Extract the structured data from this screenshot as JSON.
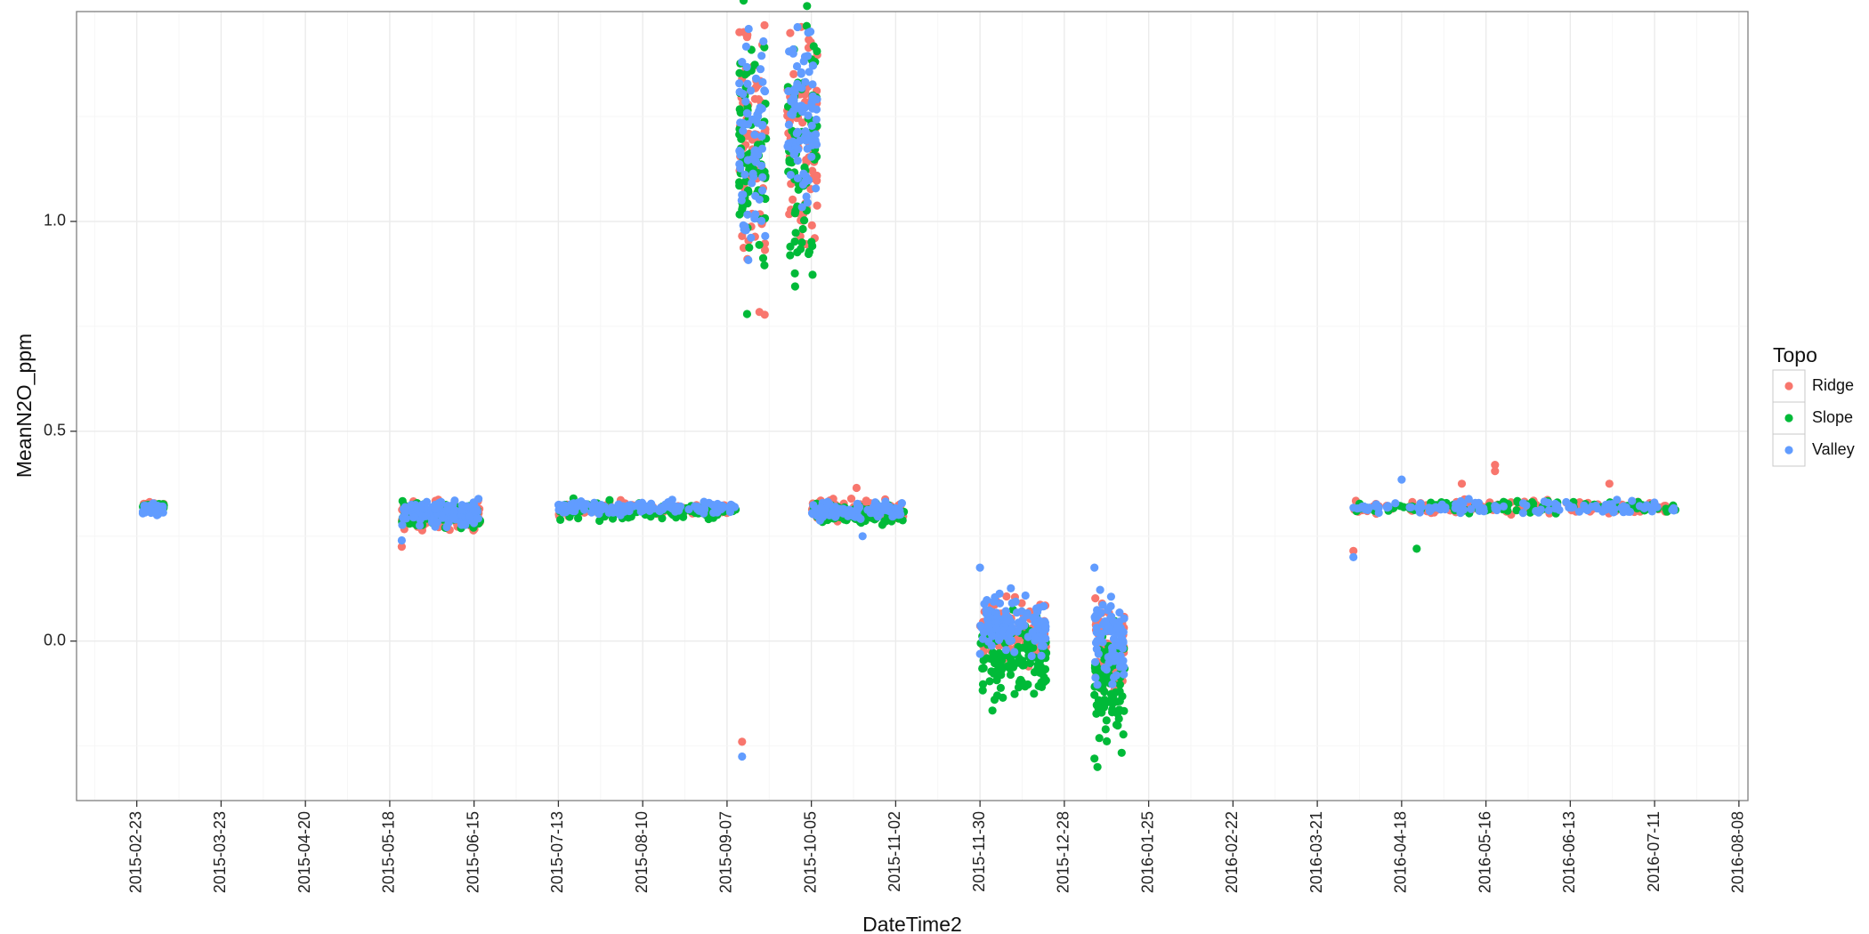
{
  "chart_data": {
    "type": "scatter",
    "title": "",
    "xlabel": "DateTime2",
    "ylabel": "MeanN2O_ppm",
    "x_type": "date",
    "xlim": [
      "2015-02-03",
      "2016-08-11"
    ],
    "ylim": [
      -0.38,
      1.5
    ],
    "grid": true,
    "legend": {
      "title": "Topo",
      "position": "right"
    },
    "x_ticks": [
      "2015-02-23",
      "2015-03-23",
      "2015-04-20",
      "2015-05-18",
      "2015-06-15",
      "2015-07-13",
      "2015-08-10",
      "2015-09-07",
      "2015-10-05",
      "2015-11-02",
      "2015-11-30",
      "2015-12-28",
      "2016-01-25",
      "2016-02-22",
      "2016-03-21",
      "2016-04-18",
      "2016-05-16",
      "2016-06-13",
      "2016-07-11",
      "2016-08-08"
    ],
    "y_ticks": [
      0.0,
      0.5,
      1.0
    ],
    "y_tick_labels": [
      "0.0",
      "0.5",
      "1.0"
    ],
    "series": [
      {
        "name": "Ridge",
        "color": "#F8766D",
        "clusters": [
          {
            "start": "2015-02-25",
            "end": "2015-03-04",
            "center": 0.32,
            "spread": 0.005
          },
          {
            "start": "2015-05-22",
            "end": "2015-06-17",
            "center": 0.3,
            "spread": 0.016
          },
          {
            "start": "2015-07-13",
            "end": "2015-09-10",
            "center": 0.315,
            "spread": 0.008
          },
          {
            "start": "2015-09-11",
            "end": "2015-09-20",
            "center": 1.18,
            "spread": 0.16
          },
          {
            "start": "2015-09-27",
            "end": "2015-10-07",
            "center": 1.2,
            "spread": 0.12
          },
          {
            "start": "2015-10-05",
            "end": "2015-11-05",
            "center": 0.31,
            "spread": 0.012
          },
          {
            "start": "2015-11-30",
            "end": "2015-12-22",
            "center": 0.02,
            "spread": 0.035
          },
          {
            "start": "2016-01-07",
            "end": "2016-01-17",
            "center": -0.02,
            "spread": 0.05
          },
          {
            "start": "2016-04-02",
            "end": "2016-07-18",
            "center": 0.32,
            "spread": 0.008
          }
        ],
        "points": [
          {
            "x": "2015-09-12",
            "y": -0.24
          },
          {
            "x": "2015-05-22",
            "y": 0.225
          },
          {
            "x": "2016-04-02",
            "y": 0.215
          },
          {
            "x": "2016-05-19",
            "y": 0.42
          },
          {
            "x": "2016-05-19",
            "y": 0.405
          },
          {
            "x": "2016-05-08",
            "y": 0.375
          },
          {
            "x": "2016-06-26",
            "y": 0.375
          },
          {
            "x": "2015-10-20",
            "y": 0.365
          },
          {
            "x": "2015-09-12",
            "y": 0.965
          },
          {
            "x": "2015-09-12",
            "y": 1.34
          }
        ]
      },
      {
        "name": "Slope",
        "color": "#00BA38",
        "clusters": [
          {
            "start": "2015-02-25",
            "end": "2015-03-04",
            "center": 0.32,
            "spread": 0.004
          },
          {
            "start": "2015-05-22",
            "end": "2015-06-17",
            "center": 0.3,
            "spread": 0.015
          },
          {
            "start": "2015-07-13",
            "end": "2015-09-10",
            "center": 0.31,
            "spread": 0.009
          },
          {
            "start": "2015-09-11",
            "end": "2015-09-20",
            "center": 1.15,
            "spread": 0.15
          },
          {
            "start": "2015-09-27",
            "end": "2015-10-07",
            "center": 1.18,
            "spread": 0.14
          },
          {
            "start": "2015-10-05",
            "end": "2015-11-05",
            "center": 0.305,
            "spread": 0.012
          },
          {
            "start": "2015-11-30",
            "end": "2015-12-22",
            "center": -0.05,
            "spread": 0.045
          },
          {
            "start": "2016-01-07",
            "end": "2016-01-17",
            "center": -0.12,
            "spread": 0.06
          },
          {
            "start": "2016-04-02",
            "end": "2016-07-18",
            "center": 0.32,
            "spread": 0.007
          }
        ],
        "points": [
          {
            "x": "2016-01-07",
            "y": -0.28
          },
          {
            "x": "2016-01-08",
            "y": -0.3
          },
          {
            "x": "2015-09-28",
            "y": 0.94
          },
          {
            "x": "2016-04-23",
            "y": 0.22
          },
          {
            "x": "2015-07-18",
            "y": 0.34
          },
          {
            "x": "2015-09-13",
            "y": 1.35
          }
        ]
      },
      {
        "name": "Valley",
        "color": "#619CFF",
        "clusters": [
          {
            "start": "2015-02-25",
            "end": "2015-03-04",
            "center": 0.315,
            "spread": 0.006
          },
          {
            "start": "2015-05-22",
            "end": "2015-06-17",
            "center": 0.305,
            "spread": 0.015
          },
          {
            "start": "2015-07-13",
            "end": "2015-09-10",
            "center": 0.318,
            "spread": 0.007
          },
          {
            "start": "2015-09-11",
            "end": "2015-09-20",
            "center": 1.2,
            "spread": 0.14
          },
          {
            "start": "2015-09-27",
            "end": "2015-10-07",
            "center": 1.25,
            "spread": 0.1
          },
          {
            "start": "2015-10-05",
            "end": "2015-11-05",
            "center": 0.31,
            "spread": 0.01
          },
          {
            "start": "2015-11-30",
            "end": "2015-12-22",
            "center": 0.04,
            "spread": 0.035
          },
          {
            "start": "2016-01-07",
            "end": "2016-01-17",
            "center": 0.0,
            "spread": 0.05
          },
          {
            "start": "2016-04-02",
            "end": "2016-07-18",
            "center": 0.318,
            "spread": 0.007
          }
        ],
        "points": [
          {
            "x": "2015-09-12",
            "y": -0.275
          },
          {
            "x": "2015-09-12",
            "y": 1.38
          },
          {
            "x": "2015-09-29",
            "y": 1.41
          },
          {
            "x": "2015-09-29",
            "y": 1.4
          },
          {
            "x": "2015-11-30",
            "y": 0.175
          },
          {
            "x": "2016-01-07",
            "y": 0.175
          },
          {
            "x": "2016-04-18",
            "y": 0.385
          },
          {
            "x": "2016-04-02",
            "y": 0.2
          },
          {
            "x": "2015-10-22",
            "y": 0.25
          },
          {
            "x": "2015-05-22",
            "y": 0.24
          }
        ]
      }
    ]
  }
}
